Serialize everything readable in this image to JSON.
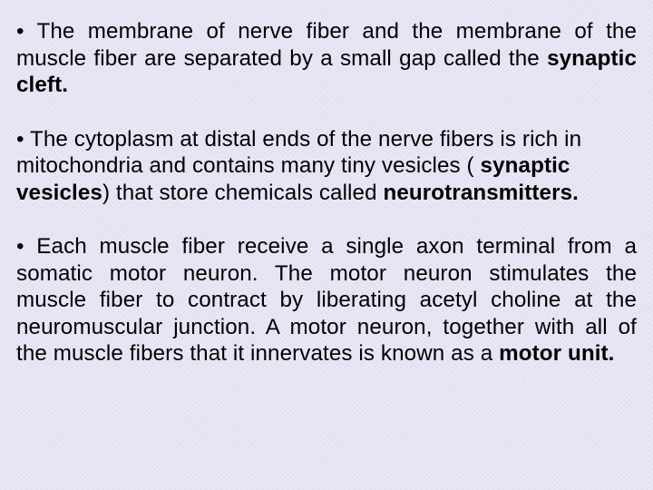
{
  "background_color": "#e8e8f5",
  "text_color": "#000000",
  "font_family": "Arial",
  "font_size_pt": 18,
  "line_height": 1.22,
  "paragraphs": [
    {
      "justify": true,
      "runs": [
        {
          "text": "The membrane of nerve fiber and the membrane of the muscle fiber are separated by a small gap called the ",
          "bold": false
        },
        {
          "text": "synaptic cleft.",
          "bold": true
        }
      ]
    },
    {
      "justify": false,
      "runs": [
        {
          "text": "The cytoplasm at distal ends of the nerve fibers is rich in mitochondria and contains many tiny vesicles (",
          "bold": false
        },
        {
          "text": " synaptic vesicles",
          "bold": true
        },
        {
          "text": ") that store chemicals called ",
          "bold": false
        },
        {
          "text": "neurotransmitters.",
          "bold": true
        }
      ]
    },
    {
      "justify": true,
      "runs": [
        {
          "text": "Each muscle fiber receive a single axon terminal from a somatic motor neuron. The motor neuron stimulates the muscle fiber to contract by liberating acetyl choline at the neuromuscular junction. A motor neuron, together with all of the muscle fibers that it innervates is known as a ",
          "bold": false
        },
        {
          "text": "motor unit.",
          "bold": true
        }
      ]
    }
  ]
}
